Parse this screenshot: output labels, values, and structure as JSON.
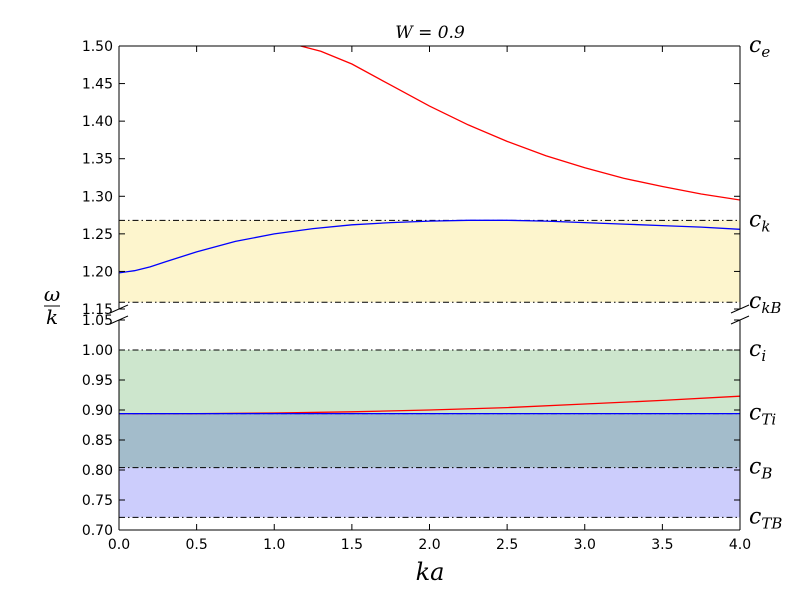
{
  "chart_data": {
    "type": "line",
    "title": "W = 0.9",
    "xlabel": "ka",
    "ylabel": {
      "num": "ω",
      "den": "k"
    },
    "xlim": [
      0.0,
      4.0
    ],
    "x_ticks": [
      "0.0",
      "0.5",
      "1.0",
      "1.5",
      "2.0",
      "2.5",
      "3.0",
      "3.5",
      "4.0"
    ],
    "panels": [
      {
        "name": "upper",
        "ylim": [
          1.15,
          1.5
        ],
        "y_ticks": [
          "1.15",
          "1.20",
          "1.25",
          "1.30",
          "1.35",
          "1.40",
          "1.45",
          "1.50"
        ]
      },
      {
        "name": "lower",
        "ylim": [
          0.7,
          1.05
        ],
        "y_ticks": [
          "0.70",
          "0.75",
          "0.80",
          "0.85",
          "0.90",
          "0.95",
          "1.00",
          "1.05"
        ]
      }
    ],
    "reference_lines": [
      {
        "label": "e",
        "value": 1.5,
        "panel": 0
      },
      {
        "label": "k",
        "value": 1.268,
        "panel": 0
      },
      {
        "label": "kB",
        "value": 1.159,
        "panel": 0
      },
      {
        "label": "i",
        "value": 1.0,
        "panel": 1
      },
      {
        "label": "Ti",
        "value": 0.894,
        "panel": 1
      },
      {
        "label": "B",
        "value": 0.804,
        "panel": 1
      },
      {
        "label": "TB",
        "value": 0.721,
        "panel": 1
      }
    ],
    "bands": [
      {
        "panel": 0,
        "from": 1.159,
        "to": 1.268,
        "color": "#fdf5cd"
      },
      {
        "panel": 1,
        "from": 0.894,
        "to": 1.0,
        "color": "#cde6cd"
      },
      {
        "panel": 1,
        "from": 0.804,
        "to": 0.894,
        "color": "#a3bccb"
      },
      {
        "panel": 1,
        "from": 0.721,
        "to": 0.804,
        "color": "#cccdfc"
      }
    ],
    "series": [
      {
        "color": "#ff0000",
        "panel": 0,
        "x": [
          1.17,
          1.3,
          1.5,
          1.75,
          2.0,
          2.25,
          2.5,
          2.75,
          3.0,
          3.25,
          3.5,
          3.75,
          4.0
        ],
        "y": [
          1.5,
          1.493,
          1.476,
          1.448,
          1.42,
          1.395,
          1.373,
          1.354,
          1.338,
          1.324,
          1.313,
          1.303,
          1.295
        ]
      },
      {
        "color": "#0000ff",
        "panel": 0,
        "x": [
          0.0,
          0.1,
          0.2,
          0.3,
          0.5,
          0.75,
          1.0,
          1.25,
          1.5,
          1.75,
          2.0,
          2.25,
          2.5,
          2.75,
          3.0,
          3.25,
          3.5,
          3.75,
          4.0
        ],
        "y": [
          1.198,
          1.201,
          1.206,
          1.213,
          1.226,
          1.24,
          1.25,
          1.257,
          1.262,
          1.265,
          1.267,
          1.268,
          1.268,
          1.267,
          1.265,
          1.263,
          1.261,
          1.259,
          1.256
        ]
      },
      {
        "color": "#ff0000",
        "panel": 1,
        "x": [
          0.0,
          0.5,
          1.0,
          1.5,
          2.0,
          2.5,
          3.0,
          3.5,
          4.0
        ],
        "y": [
          0.894,
          0.894,
          0.895,
          0.897,
          0.9,
          0.904,
          0.91,
          0.916,
          0.923
        ]
      },
      {
        "color": "#0000ff",
        "panel": 1,
        "x": [
          0.0,
          1.0,
          2.0,
          3.0,
          4.0
        ],
        "y": [
          0.894,
          0.894,
          0.894,
          0.894,
          0.894
        ]
      }
    ]
  }
}
